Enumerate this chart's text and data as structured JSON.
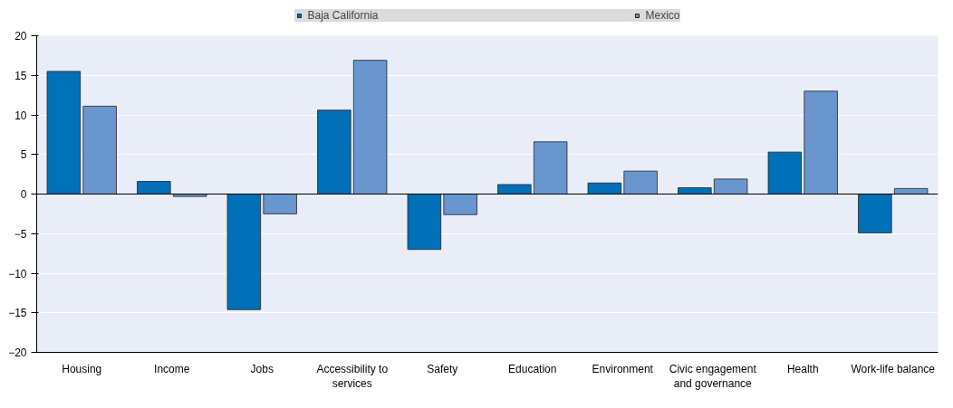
{
  "chart_data": {
    "type": "bar",
    "categories": [
      "Housing",
      "Income",
      "Jobs",
      "Accessibility to\nservices",
      "Safety",
      "Education",
      "Environment",
      "Civic engagement\nand governance",
      "Health",
      "Work-life balance"
    ],
    "series": [
      {
        "name": "Baja California",
        "color": "#0070b8",
        "values": [
          15.5,
          1.6,
          -14.6,
          10.6,
          -7.0,
          1.2,
          1.4,
          0.8,
          5.3,
          -4.9
        ]
      },
      {
        "name": "Mexico",
        "color": "#6a96d0",
        "values": [
          11.1,
          -0.3,
          -2.5,
          16.9,
          -2.6,
          6.6,
          2.9,
          1.9,
          13.0,
          0.7
        ]
      }
    ],
    "ylim": [
      -20,
      20
    ],
    "yticks": [
      -20,
      -15,
      -10,
      -5,
      0,
      5,
      10,
      15,
      20
    ],
    "grid": "y",
    "legend": "top"
  }
}
